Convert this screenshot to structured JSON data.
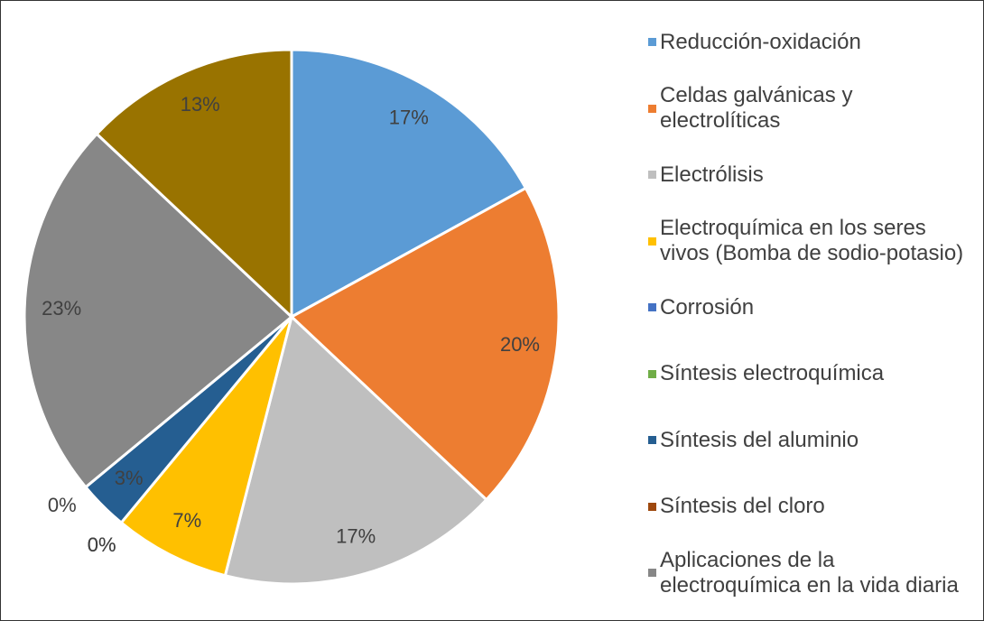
{
  "chart_data": {
    "type": "pie",
    "categories": [
      "Reducción-oxidación",
      "Celdas galvánicas y electrolíticas",
      "Electrólisis",
      "Electroquímica en los seres vivos (Bomba de sodio-potasio)",
      "Corrosión",
      "Síntesis electroquímica",
      "Síntesis del aluminio",
      "Síntesis del cloro",
      "Aplicaciones de la electroquímica en la vida diaria",
      null
    ],
    "values": [
      17,
      20,
      17,
      7,
      0,
      0,
      3,
      0,
      23,
      13
    ],
    "value_labels": [
      "17%",
      "20%",
      "17%",
      "7%",
      "0%",
      "0%",
      "3%",
      "0%",
      "23%",
      "13%"
    ],
    "colors": [
      "#5b9bd5",
      "#ed7d31",
      "#bfbfbf",
      "#ffc000",
      "#4472c4",
      "#70ad47",
      "#255e91",
      "#9e480e",
      "#878787",
      "#997300"
    ],
    "legend": "right"
  }
}
